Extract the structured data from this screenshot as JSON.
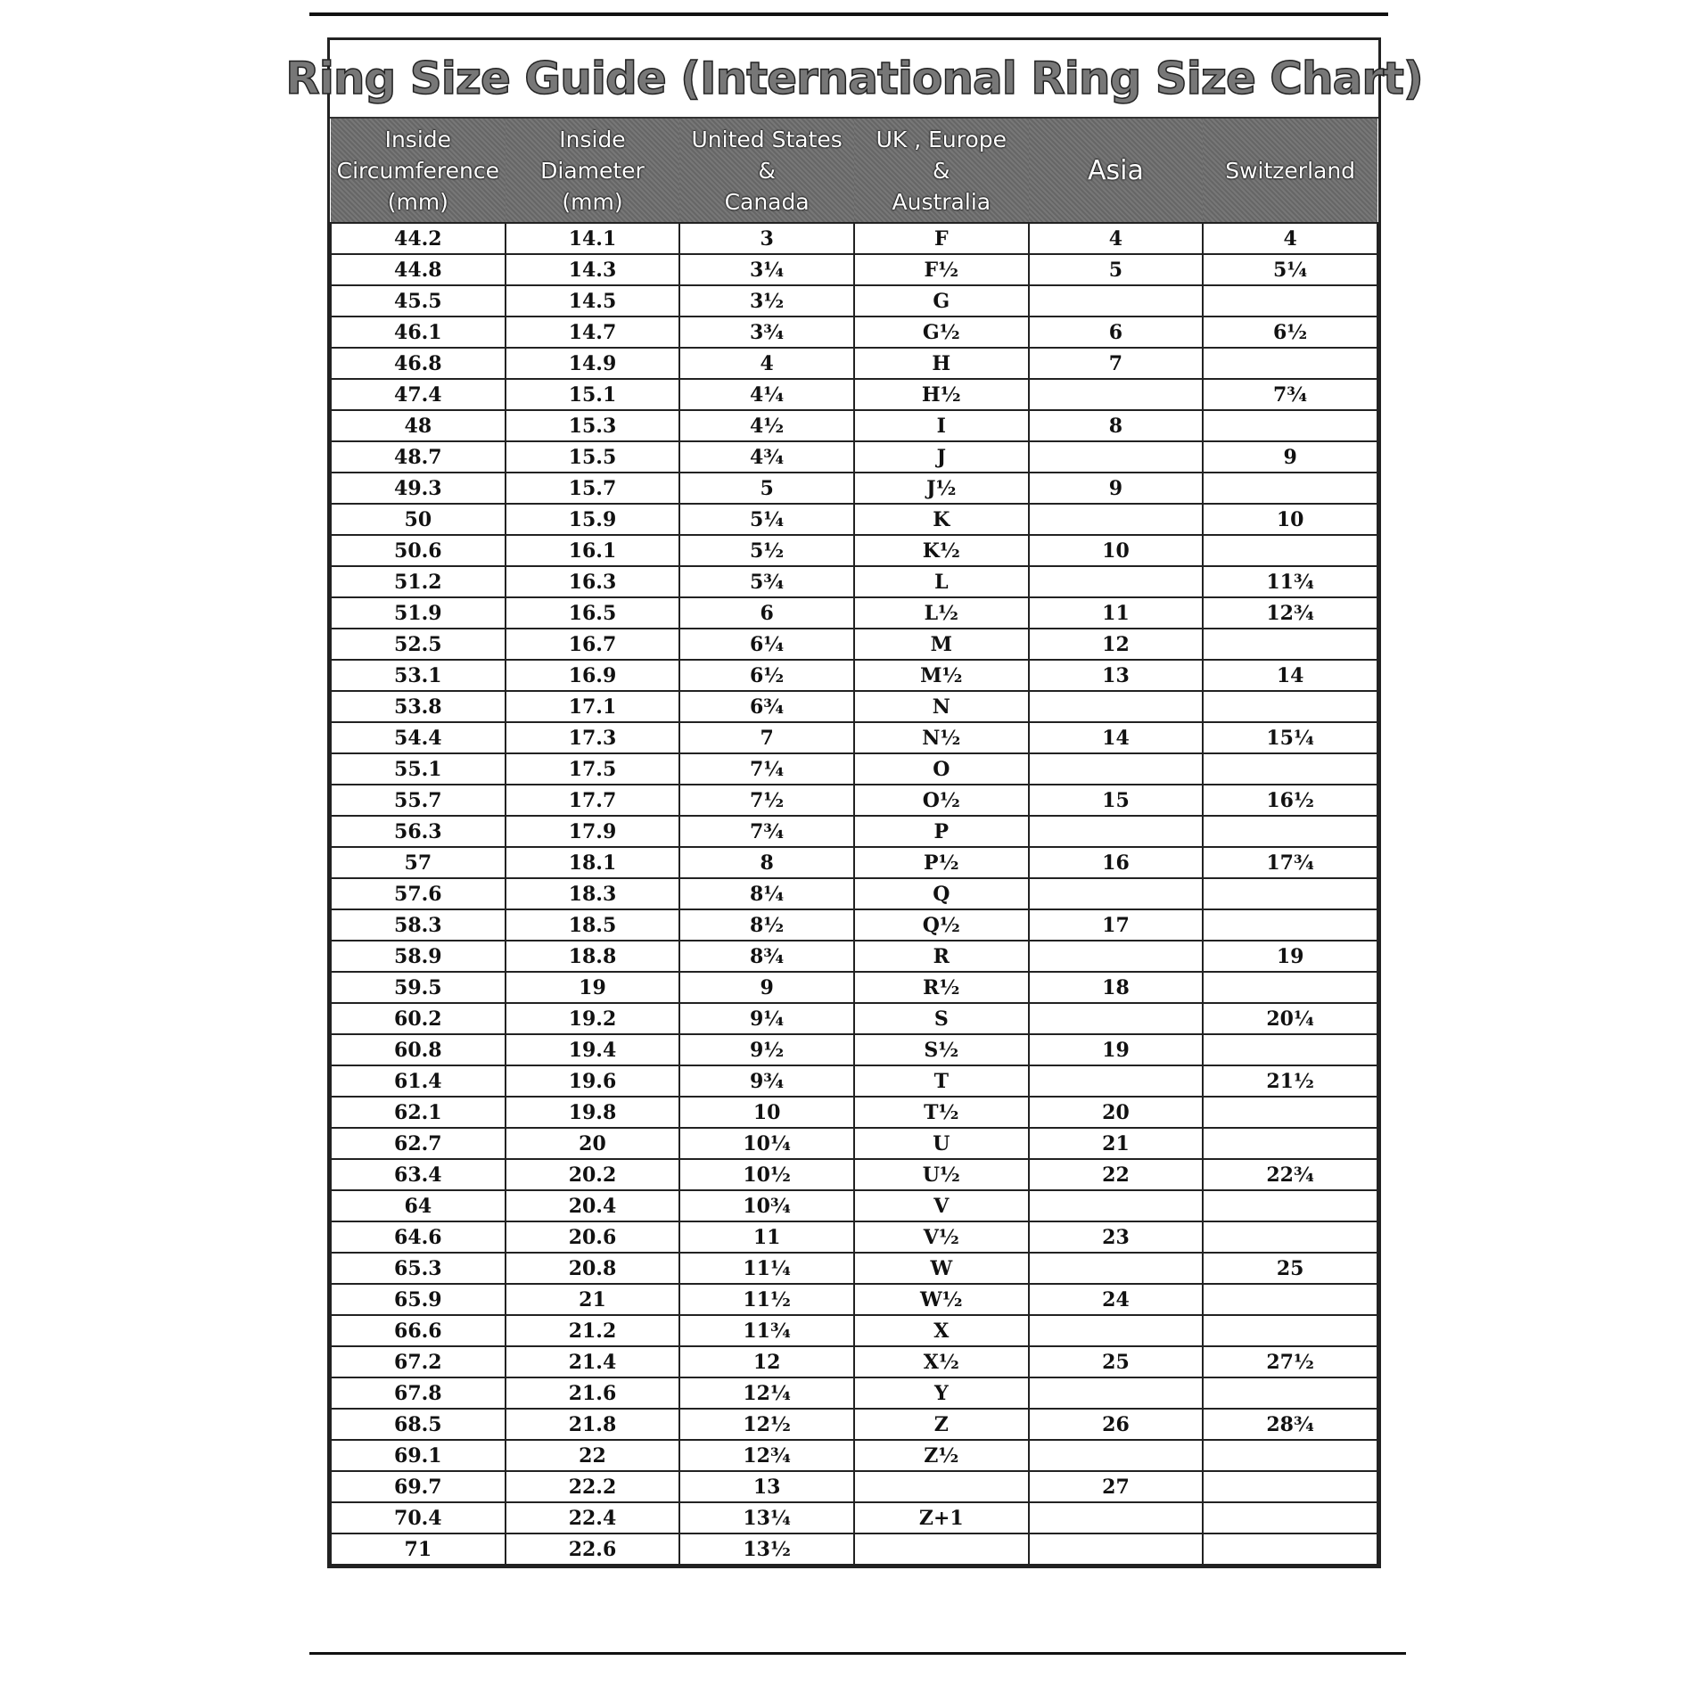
{
  "title": "Ring  Size  Guide (International Ring Size Chart)",
  "columns": [
    "Inside\nCircumference\n(mm)",
    "Inside\nDiameter\n(mm)",
    "United States\n&\nCanada",
    "UK , Europe\n&\nAustralia",
    "Asia",
    "Switzerland"
  ],
  "rows": [
    [
      "44.2",
      "14.1",
      "3",
      "F",
      "4",
      "4"
    ],
    [
      "44.8",
      "14.3",
      "3¼",
      "F½",
      "5",
      "5¼"
    ],
    [
      "45.5",
      "14.5",
      "3½",
      "G",
      "",
      ""
    ],
    [
      "46.1",
      "14.7",
      "3¾",
      "G½",
      "6",
      "6½"
    ],
    [
      "46.8",
      "14.9",
      "4",
      "H",
      "7",
      ""
    ],
    [
      "47.4",
      "15.1",
      "4¼",
      "H½",
      "",
      "7¾"
    ],
    [
      "48",
      "15.3",
      "4½",
      "I",
      "8",
      ""
    ],
    [
      "48.7",
      "15.5",
      "4¾",
      "J",
      "",
      "9"
    ],
    [
      "49.3",
      "15.7",
      "5",
      "J½",
      "9",
      ""
    ],
    [
      "50",
      "15.9",
      "5¼",
      "K",
      "",
      "10"
    ],
    [
      "50.6",
      "16.1",
      "5½",
      "K½",
      "10",
      ""
    ],
    [
      "51.2",
      "16.3",
      "5¾",
      "L",
      "",
      "11¾"
    ],
    [
      "51.9",
      "16.5",
      "6",
      "L½",
      "11",
      "12¾"
    ],
    [
      "52.5",
      "16.7",
      "6¼",
      "M",
      "12",
      ""
    ],
    [
      "53.1",
      "16.9",
      "6½",
      "M½",
      "13",
      "14"
    ],
    [
      "53.8",
      "17.1",
      "6¾",
      "N",
      "",
      ""
    ],
    [
      "54.4",
      "17.3",
      "7",
      "N½",
      "14",
      "15¼"
    ],
    [
      "55.1",
      "17.5",
      "7¼",
      "O",
      "",
      ""
    ],
    [
      "55.7",
      "17.7",
      "7½",
      "O½",
      "15",
      "16½"
    ],
    [
      "56.3",
      "17.9",
      "7¾",
      "P",
      "",
      ""
    ],
    [
      "57",
      "18.1",
      "8",
      "P½",
      "16",
      "17¾"
    ],
    [
      "57.6",
      "18.3",
      "8¼",
      "Q",
      "",
      ""
    ],
    [
      "58.3",
      "18.5",
      "8½",
      "Q½",
      "17",
      ""
    ],
    [
      "58.9",
      "18.8",
      "8¾",
      "R",
      "",
      "19"
    ],
    [
      "59.5",
      "19",
      "9",
      "R½",
      "18",
      ""
    ],
    [
      "60.2",
      "19.2",
      "9¼",
      "S",
      "",
      "20¼"
    ],
    [
      "60.8",
      "19.4",
      "9½",
      "S½",
      "19",
      ""
    ],
    [
      "61.4",
      "19.6",
      "9¾",
      "T",
      "",
      "21½"
    ],
    [
      "62.1",
      "19.8",
      "10",
      "T½",
      "20",
      ""
    ],
    [
      "62.7",
      "20",
      "10¼",
      "U",
      "21",
      ""
    ],
    [
      "63.4",
      "20.2",
      "10½",
      "U½",
      "22",
      "22¾"
    ],
    [
      "64",
      "20.4",
      "10¾",
      "V",
      "",
      ""
    ],
    [
      "64.6",
      "20.6",
      "11",
      "V½",
      "23",
      ""
    ],
    [
      "65.3",
      "20.8",
      "11¼",
      "W",
      "",
      "25"
    ],
    [
      "65.9",
      "21",
      "11½",
      "W½",
      "24",
      ""
    ],
    [
      "66.6",
      "21.2",
      "11¾",
      "X",
      "",
      ""
    ],
    [
      "67.2",
      "21.4",
      "12",
      "X½",
      "25",
      "27½"
    ],
    [
      "67.8",
      "21.6",
      "12¼",
      "Y",
      "",
      ""
    ],
    [
      "68.5",
      "21.8",
      "12½",
      "Z",
      "26",
      "28¾"
    ],
    [
      "69.1",
      "22",
      "12¾",
      "Z½",
      "",
      ""
    ],
    [
      "69.7",
      "22.2",
      "13",
      "",
      "27",
      ""
    ],
    [
      "70.4",
      "22.4",
      "13¼",
      "Z+1",
      "",
      ""
    ],
    [
      "71",
      "22.6",
      "13½",
      "",
      "",
      ""
    ]
  ]
}
